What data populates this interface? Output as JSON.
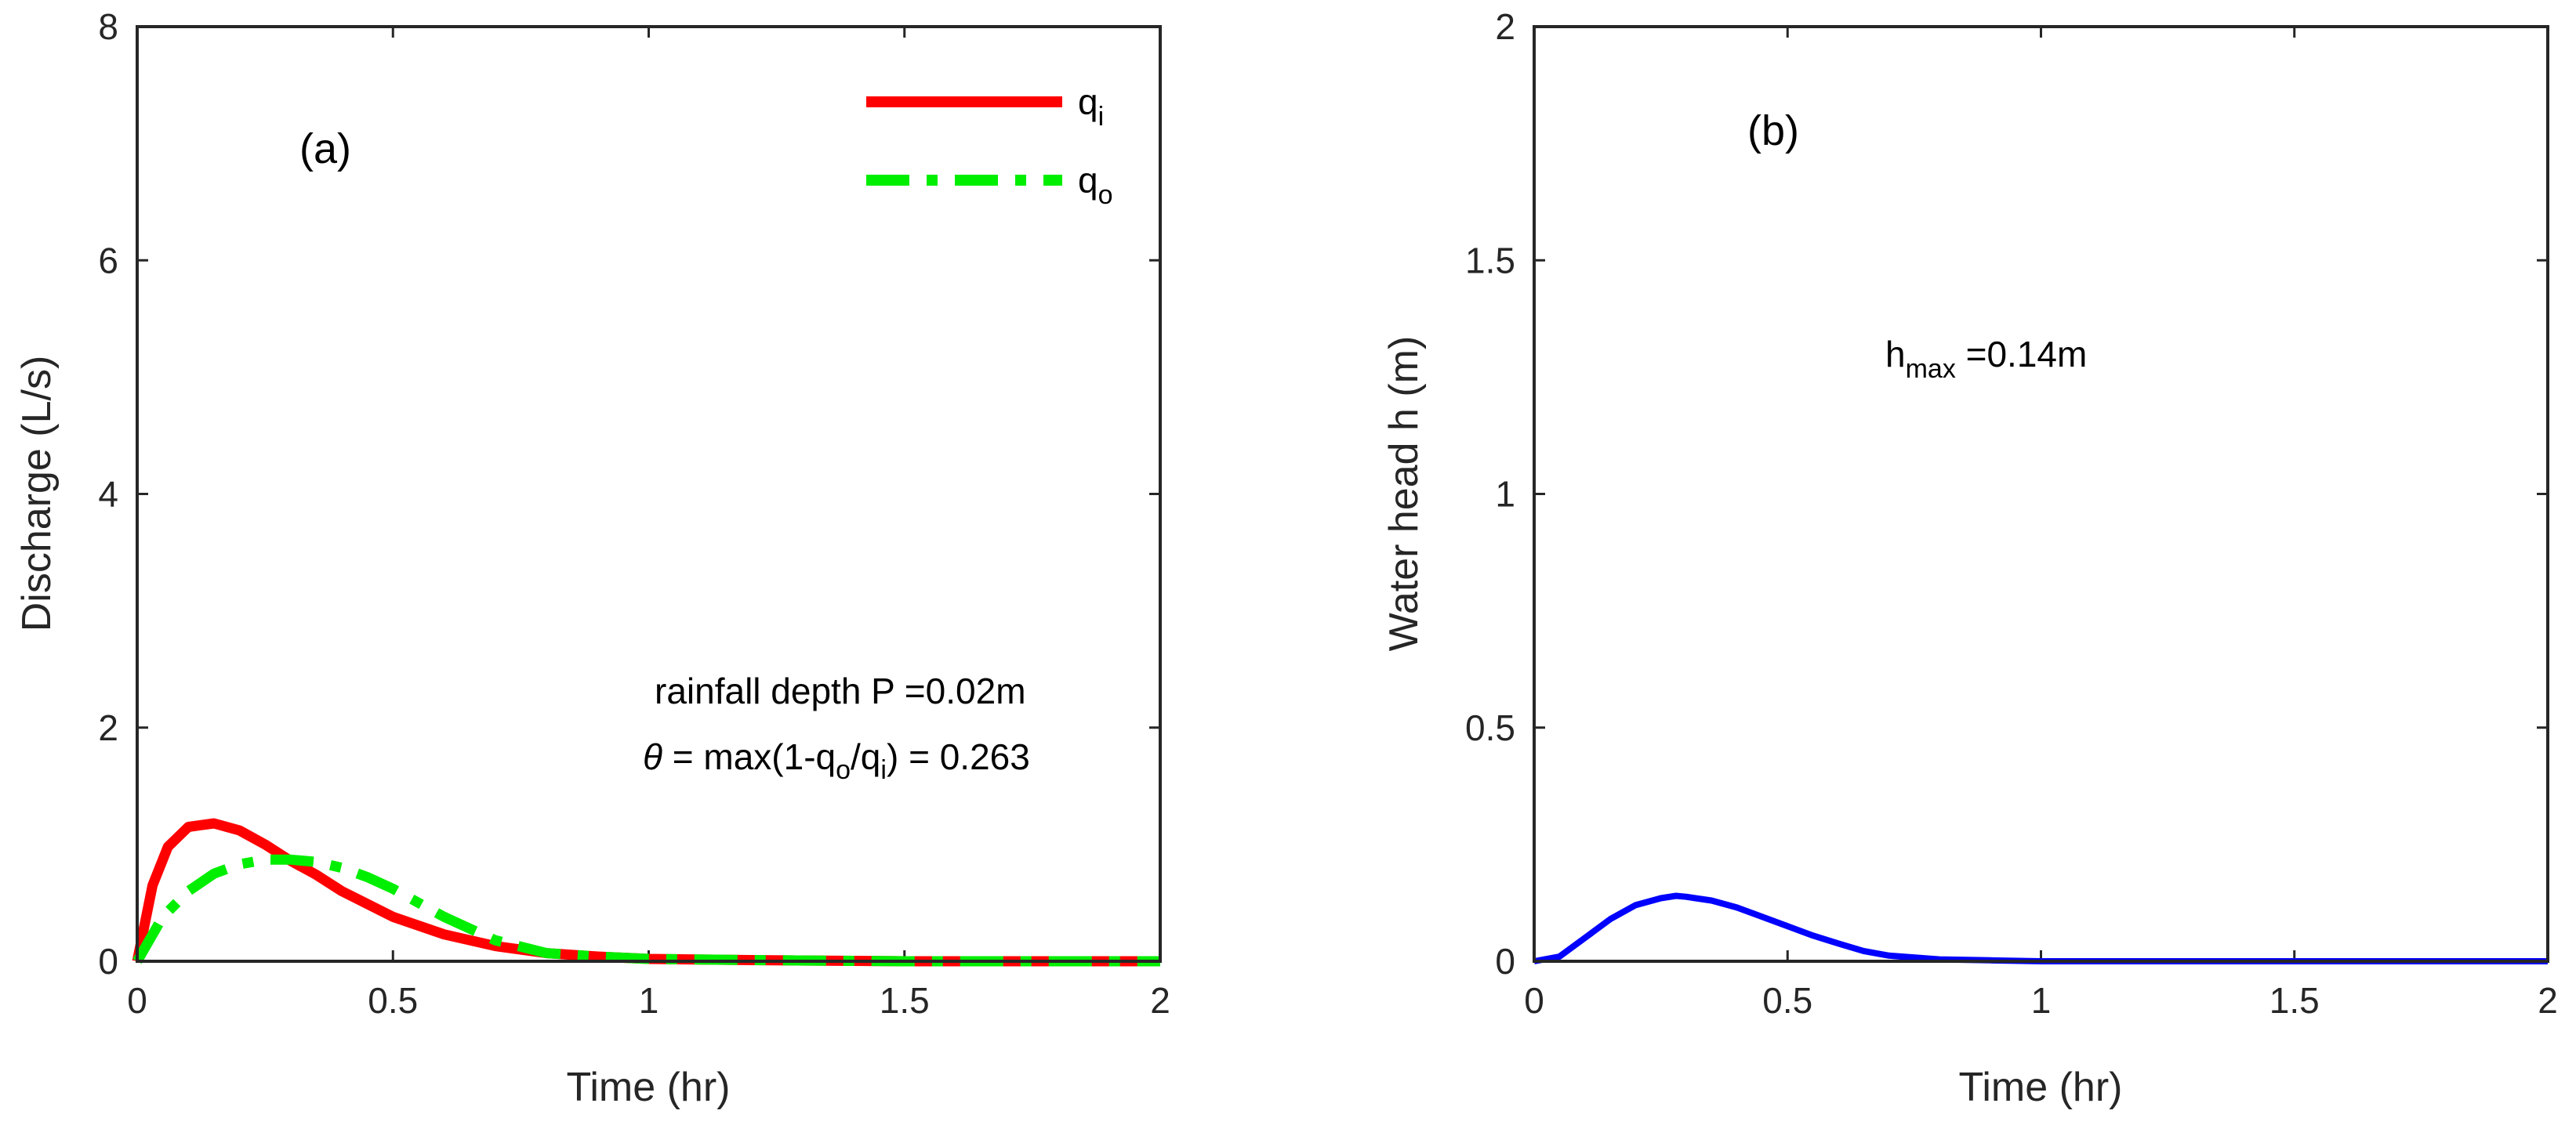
{
  "chart_data": [
    {
      "type": "line",
      "panel_label": "(a)",
      "xlabel": "Time (hr)",
      "ylabel": "Discharge (L/s)",
      "xlim": [
        0,
        2
      ],
      "ylim": [
        0,
        8
      ],
      "xticks": [
        0,
        0.5,
        1,
        1.5,
        2
      ],
      "xtick_labels": [
        "0",
        "0.5",
        "1",
        "1.5",
        "2"
      ],
      "yticks": [
        0,
        2,
        4,
        6,
        8
      ],
      "ytick_labels": [
        "0",
        "2",
        "4",
        "6",
        "8"
      ],
      "legend_position": "top-right",
      "series": [
        {
          "name": "q",
          "subscript": "i",
          "color": "#ff0000",
          "style": "solid",
          "x": [
            0,
            0.03,
            0.06,
            0.1,
            0.15,
            0.2,
            0.25,
            0.3,
            0.35,
            0.4,
            0.5,
            0.6,
            0.7,
            0.8,
            0.9,
            1.0,
            1.2,
            1.5,
            2.0
          ],
          "y": [
            0,
            0.65,
            0.98,
            1.15,
            1.18,
            1.12,
            1.0,
            0.86,
            0.74,
            0.6,
            0.38,
            0.23,
            0.13,
            0.07,
            0.04,
            0.02,
            0.01,
            0.0,
            0.0
          ]
        },
        {
          "name": "q",
          "subscript": "o",
          "color": "#00ee00",
          "style": "dashdot",
          "x": [
            0,
            0.05,
            0.1,
            0.15,
            0.2,
            0.25,
            0.3,
            0.35,
            0.4,
            0.45,
            0.5,
            0.6,
            0.7,
            0.8,
            0.9,
            1.0,
            1.2,
            1.5,
            2.0
          ],
          "y": [
            0,
            0.38,
            0.6,
            0.75,
            0.83,
            0.87,
            0.87,
            0.85,
            0.8,
            0.72,
            0.62,
            0.38,
            0.18,
            0.07,
            0.04,
            0.02,
            0.01,
            0.0,
            0.0
          ]
        }
      ],
      "annotations": {
        "rainfall": "rainfall depth P =0.02m",
        "theta_symbol": "θ",
        "theta_eq": " = max(1-q",
        "theta_sub_o": "o",
        "theta_slash": "/q",
        "theta_sub_i": "i",
        "theta_rest": ") = 0.263"
      }
    },
    {
      "type": "line",
      "panel_label": "(b)",
      "xlabel": "Time (hr)",
      "ylabel": "Water head h (m)",
      "xlim": [
        0,
        2
      ],
      "ylim": [
        0,
        2
      ],
      "xticks": [
        0,
        0.5,
        1,
        1.5,
        2
      ],
      "xtick_labels": [
        "0",
        "0.5",
        "1",
        "1.5",
        "2"
      ],
      "yticks": [
        0,
        0.5,
        1,
        1.5,
        2
      ],
      "ytick_labels": [
        "0",
        "0.5",
        "1",
        "1.5",
        "2"
      ],
      "series": [
        {
          "name": "h",
          "color": "#0000ff",
          "style": "solid",
          "x": [
            0,
            0.05,
            0.1,
            0.15,
            0.2,
            0.25,
            0.28,
            0.3,
            0.35,
            0.4,
            0.45,
            0.5,
            0.55,
            0.6,
            0.65,
            0.7,
            0.8,
            0.9,
            1.0,
            1.5,
            2.0
          ],
          "y": [
            0,
            0.01,
            0.05,
            0.09,
            0.12,
            0.135,
            0.14,
            0.138,
            0.13,
            0.115,
            0.095,
            0.075,
            0.055,
            0.038,
            0.022,
            0.012,
            0.004,
            0.002,
            0.0,
            0.0,
            0.0
          ]
        }
      ],
      "annotations": {
        "hmax_main": "h",
        "hmax_sub": "max",
        "hmax_value": " =0.14m"
      }
    }
  ]
}
